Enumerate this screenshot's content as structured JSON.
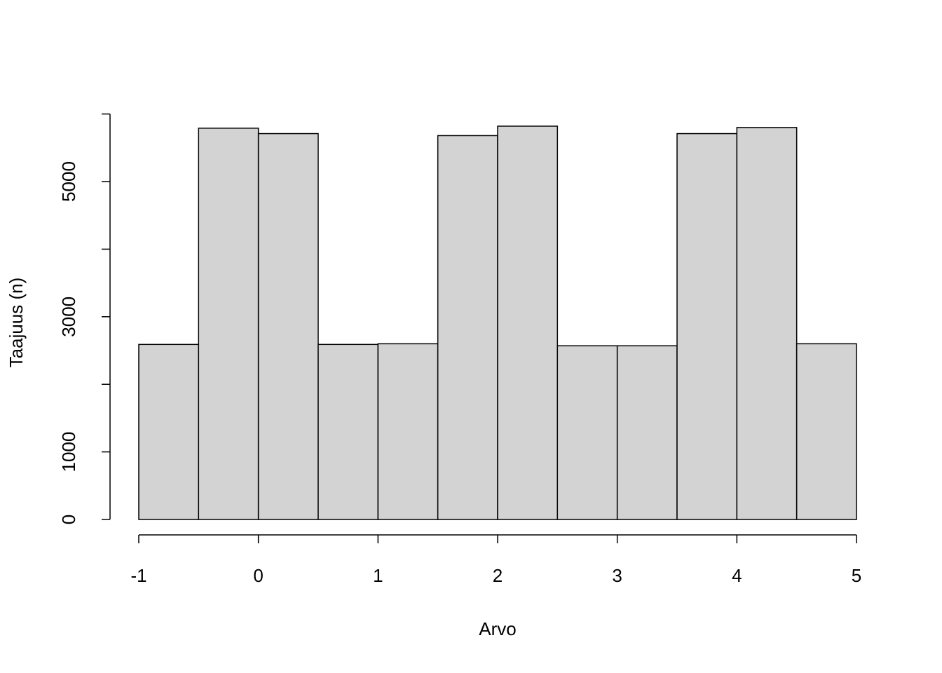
{
  "chart_data": {
    "type": "histogram",
    "x_label": "Arvo",
    "y_label": "Taajuus (n)",
    "bins": [
      -1,
      -0.5,
      0,
      0.5,
      1,
      1.5,
      2,
      2.5,
      3,
      3.5,
      4,
      4.5,
      5
    ],
    "values": [
      2590,
      5790,
      5710,
      2590,
      2600,
      5680,
      5820,
      2570,
      2570,
      5710,
      5800,
      2600
    ],
    "color": "#d3d3d3",
    "xlim": [
      -1,
      5
    ],
    "xticks": [
      -1,
      0,
      1,
      2,
      3,
      4,
      5
    ],
    "ylim": [
      0,
      6000
    ],
    "yticks": [
      0,
      1000,
      3000,
      5000
    ],
    "y_minor_ticks": [
      2000,
      4000,
      6000
    ],
    "grid": false
  }
}
